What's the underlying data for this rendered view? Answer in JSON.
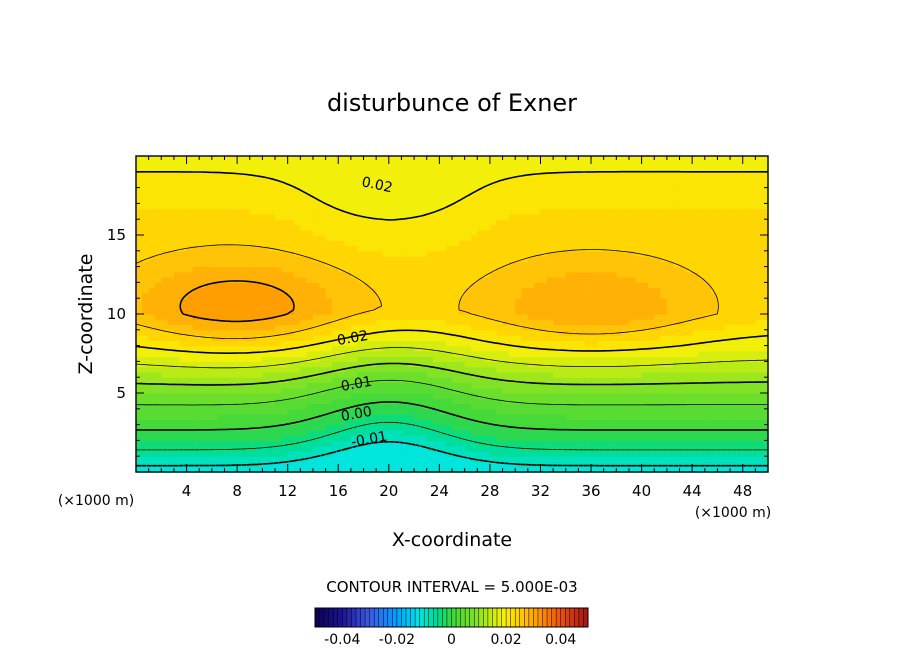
{
  "chart_data": {
    "type": "heatmap",
    "title": "disturbunce of Exner",
    "xlabel": "X-coordinate",
    "ylabel": "Z-coordinate",
    "x_unit": "(×1000 m)",
    "y_unit": "(×1000 m)",
    "xlim": [
      0,
      50
    ],
    "ylim": [
      0,
      20
    ],
    "x_ticks": [
      4,
      8,
      12,
      16,
      20,
      24,
      28,
      32,
      36,
      40,
      44,
      48
    ],
    "y_ticks": [
      5,
      10,
      15
    ],
    "contour_interval_text": "CONTOUR INTERVAL = 5.000E-03",
    "contour_labels": [
      {
        "text": "0.02",
        "x": 19,
        "z": 17.9
      },
      {
        "text": "0.02",
        "x": 17.2,
        "z": 8.2
      },
      {
        "text": "0.01",
        "x": 17.5,
        "z": 5.3
      },
      {
        "text": "0.00",
        "x": 17.5,
        "z": 3.4
      },
      {
        "text": "-0.01",
        "x": 18.5,
        "z": 1.8
      }
    ],
    "colorbar": {
      "min": -0.05,
      "max": 0.05,
      "tick_labels": [
        "-0.04",
        "-0.02",
        "0",
        "0.02",
        "0.04"
      ],
      "tick_values": [
        -0.04,
        -0.02,
        0,
        0.02,
        0.04
      ]
    },
    "field_model": {
      "baseline_profile_z": [
        0,
        2,
        4,
        6,
        8,
        10,
        12,
        14,
        16,
        18,
        20
      ],
      "baseline_values": [
        -0.012,
        -0.002,
        0.004,
        0.011,
        0.018,
        0.023,
        0.023,
        0.023,
        0.023,
        0.021,
        0.019
      ],
      "maxima": [
        {
          "x": 8,
          "z": 10.5,
          "value": 0.032
        },
        {
          "x": 36,
          "z": 10.5,
          "value": 0.03
        }
      ],
      "trough_x": 20
    }
  }
}
